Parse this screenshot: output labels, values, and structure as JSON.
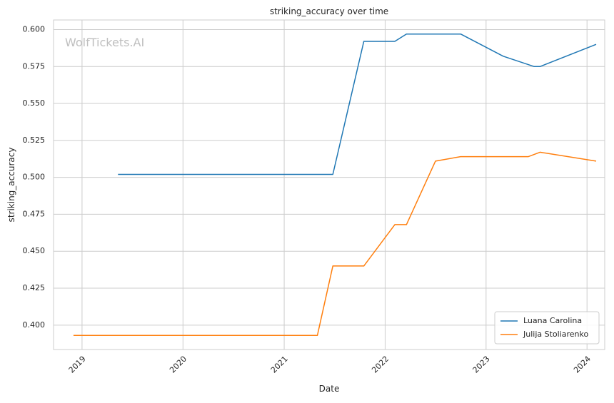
{
  "chart_data": {
    "type": "line",
    "title": "striking_accuracy over time",
    "xlabel": "Date",
    "ylabel": "striking_accuracy",
    "watermark": "WolfTickets.AI",
    "xlim": [
      "2018-09-20",
      "2024-03-05"
    ],
    "ylim": [
      0.3835,
      0.6065
    ],
    "x_ticks": [
      "2019-01-01",
      "2020-01-01",
      "2021-01-01",
      "2022-01-01",
      "2023-01-01",
      "2024-01-01"
    ],
    "x_tick_labels": [
      "2019",
      "2020",
      "2021",
      "2022",
      "2023",
      "2024"
    ],
    "y_ticks": [
      0.4,
      0.425,
      0.45,
      0.475,
      0.5,
      0.525,
      0.55,
      0.575,
      0.6
    ],
    "y_tick_labels": [
      "0.400",
      "0.425",
      "0.450",
      "0.475",
      "0.500",
      "0.525",
      "0.550",
      "0.575",
      "0.600"
    ],
    "grid": true,
    "legend_position": "bottom-right",
    "series": [
      {
        "name": "Luana Carolina",
        "color": "#1f77b4",
        "points": [
          {
            "x": "2019-05-11",
            "y": 0.502
          },
          {
            "x": "2021-06-26",
            "y": 0.502
          },
          {
            "x": "2021-10-16",
            "y": 0.592
          },
          {
            "x": "2022-02-05",
            "y": 0.592
          },
          {
            "x": "2022-03-19",
            "y": 0.597
          },
          {
            "x": "2022-10-01",
            "y": 0.597
          },
          {
            "x": "2023-03-04",
            "y": 0.582
          },
          {
            "x": "2023-06-24",
            "y": 0.575
          },
          {
            "x": "2023-07-15",
            "y": 0.575
          },
          {
            "x": "2024-02-03",
            "y": 0.59
          }
        ]
      },
      {
        "name": "Julija Stoliarenko",
        "color": "#ff7f0e",
        "points": [
          {
            "x": "2018-12-01",
            "y": 0.393
          },
          {
            "x": "2021-05-01",
            "y": 0.393
          },
          {
            "x": "2021-06-26",
            "y": 0.44
          },
          {
            "x": "2021-10-16",
            "y": 0.44
          },
          {
            "x": "2022-02-05",
            "y": 0.468
          },
          {
            "x": "2022-03-19",
            "y": 0.468
          },
          {
            "x": "2022-07-02",
            "y": 0.511
          },
          {
            "x": "2022-10-01",
            "y": 0.514
          },
          {
            "x": "2023-06-03",
            "y": 0.514
          },
          {
            "x": "2023-07-15",
            "y": 0.517
          },
          {
            "x": "2024-02-03",
            "y": 0.511
          }
        ]
      }
    ]
  }
}
